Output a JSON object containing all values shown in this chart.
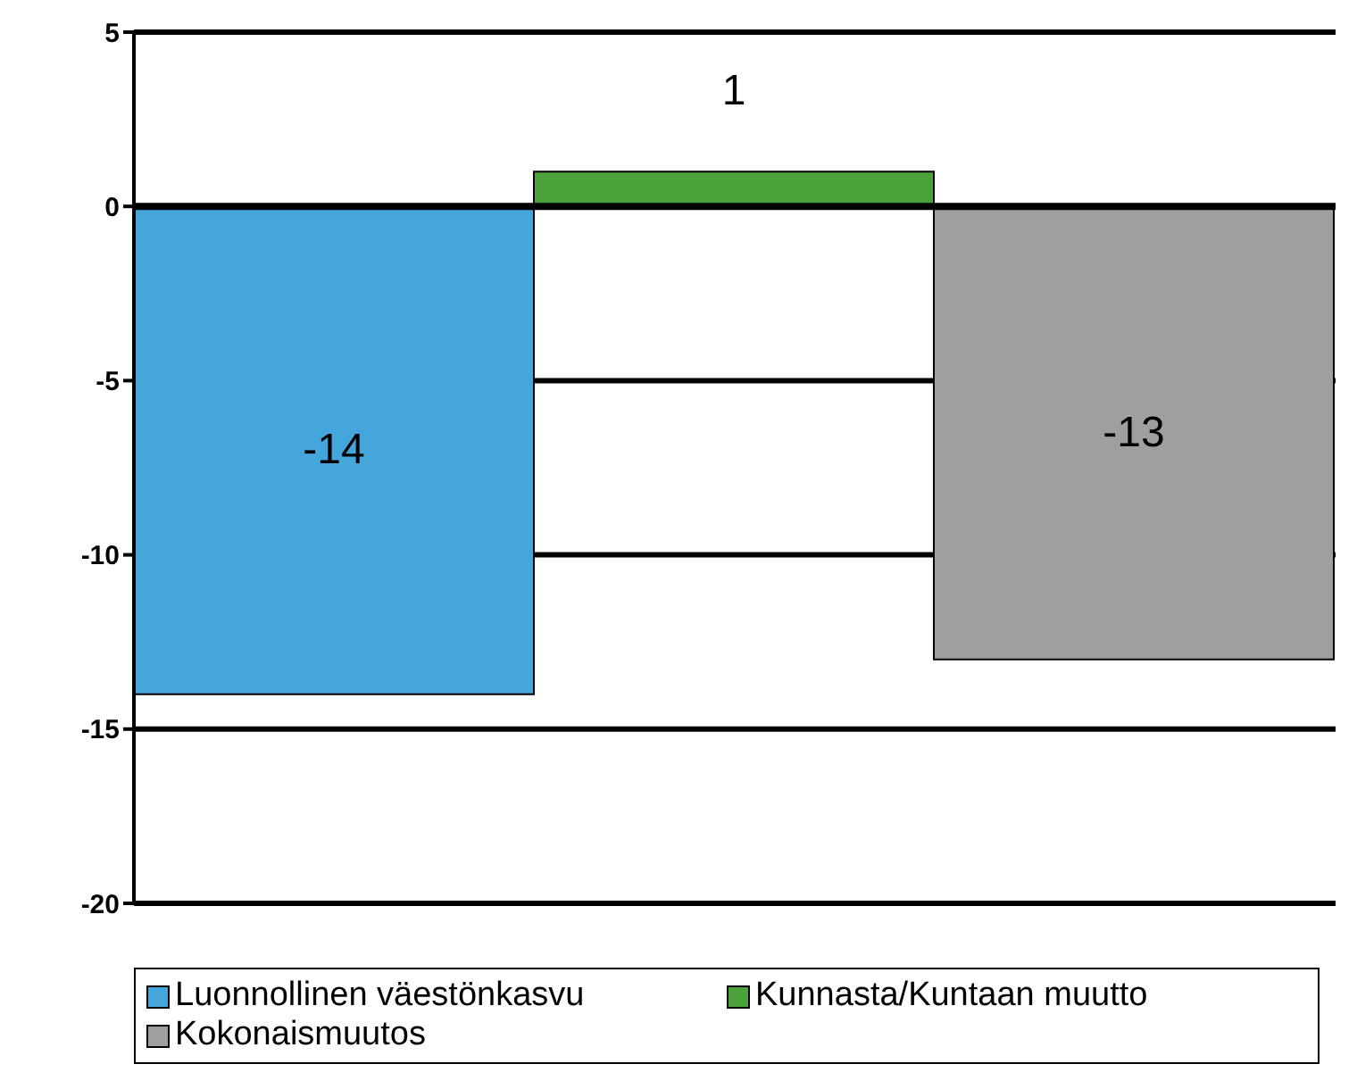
{
  "chart_data": {
    "type": "bar",
    "categories": [
      null
    ],
    "series": [
      {
        "name": "Luonnollinen väestönkasvu",
        "color": "#45a6dc",
        "values": [
          -14
        ]
      },
      {
        "name": "Kunnasta/Kuntaan muutto",
        "color": "#4ba23a",
        "values": [
          1
        ]
      },
      {
        "name": "Kokonaismuutos",
        "color": "#a09e9f",
        "values": [
          -13
        ]
      }
    ],
    "ylim": [
      -20,
      5
    ],
    "yticks": [
      -20,
      -15,
      -10,
      -5,
      0,
      5
    ],
    "grid": "y",
    "legend": "bottom",
    "data_labels": true
  }
}
